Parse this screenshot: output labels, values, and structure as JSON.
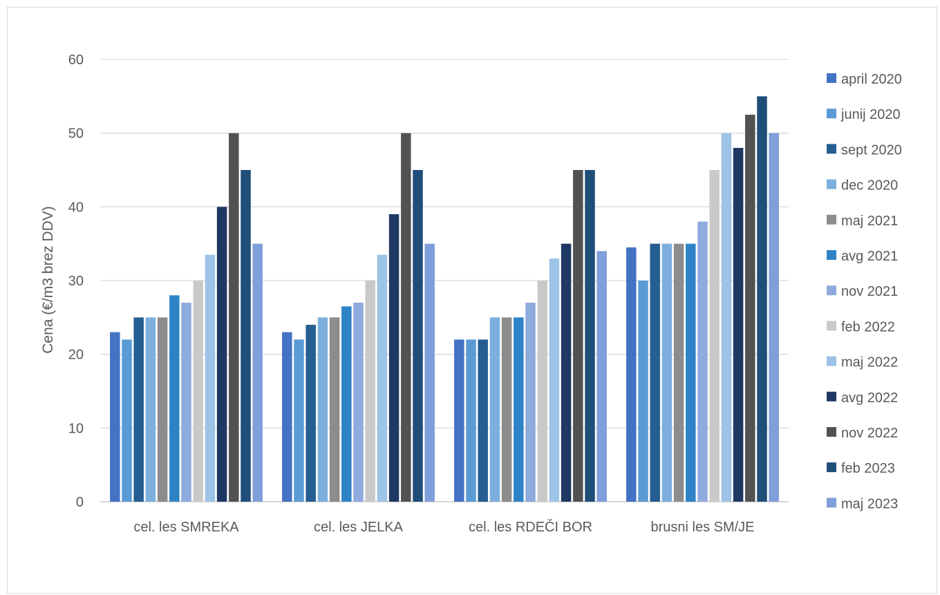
{
  "chart_data": {
    "type": "bar",
    "title": "",
    "xlabel": "",
    "ylabel": "Cena (€/m3 brez DDV)",
    "ylim": [
      0,
      60
    ],
    "yticks": [
      0,
      10,
      20,
      30,
      40,
      50,
      60
    ],
    "grid": true,
    "legend_position": "right",
    "categories": [
      "cel. les SMREKA",
      "cel. les JELKA",
      "cel. les RDEČI BOR",
      "brusni les SM/JE"
    ],
    "series": [
      {
        "name": "april 2020",
        "color": "#4472C4",
        "values": [
          23,
          23,
          22,
          34.5
        ]
      },
      {
        "name": "junij 2020",
        "color": "#5B9BD5",
        "values": [
          22,
          22,
          22,
          30
        ]
      },
      {
        "name": "sept 2020",
        "color": "#255E91",
        "values": [
          25,
          24,
          22,
          35
        ]
      },
      {
        "name": "dec 2020",
        "color": "#7CAFDD",
        "values": [
          25,
          25,
          25,
          35
        ]
      },
      {
        "name": "maj 2021",
        "color": "#8C8C8C",
        "values": [
          25,
          25,
          25,
          35
        ]
      },
      {
        "name": "avg 2021",
        "color": "#2E83C6",
        "values": [
          28,
          26.5,
          25,
          35
        ]
      },
      {
        "name": "nov 2021",
        "color": "#8FAADC",
        "values": [
          27,
          27,
          27,
          38
        ]
      },
      {
        "name": "feb 2022",
        "color": "#C9C9C9",
        "values": [
          30,
          30,
          30,
          45
        ]
      },
      {
        "name": "maj 2022",
        "color": "#9DC3E6",
        "values": [
          33.5,
          33.5,
          33,
          50
        ]
      },
      {
        "name": "avg 2022",
        "color": "#203864",
        "values": [
          40,
          39,
          35,
          48
        ]
      },
      {
        "name": "nov 2022",
        "color": "#525252",
        "values": [
          50,
          50,
          45,
          52.5
        ]
      },
      {
        "name": "feb 2023",
        "color": "#1F4E79",
        "values": [
          45,
          45,
          45,
          55
        ]
      },
      {
        "name": "maj 2023",
        "color": "#7F9FDA",
        "values": [
          35,
          35,
          34,
          50
        ]
      }
    ]
  }
}
